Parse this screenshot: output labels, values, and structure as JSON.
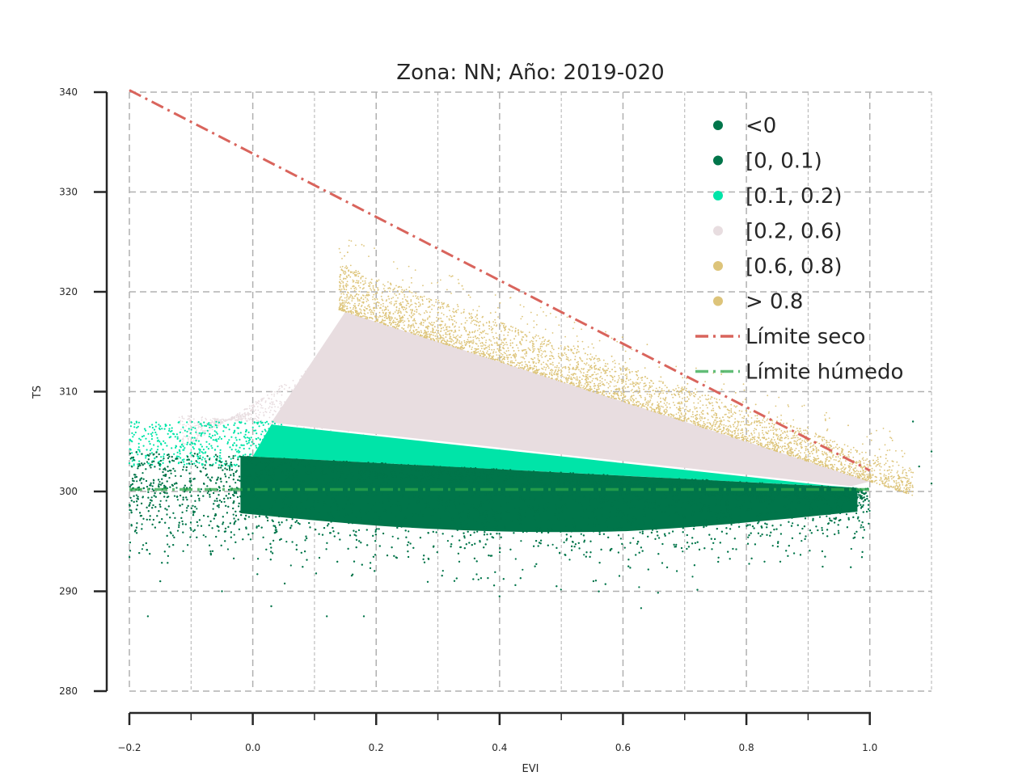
{
  "chart_data": {
    "type": "scatter",
    "title": "Zona: NN; Año: 2019-020",
    "xlabel": "EVI",
    "ylabel": "TS",
    "xlim": [
      -0.2,
      1.1
    ],
    "ylim": [
      280,
      340
    ],
    "x_ticks": [
      -0.2,
      0.0,
      0.2,
      0.4,
      0.6,
      0.8,
      1.0
    ],
    "x_tick_labels": [
      "−0.2",
      "0.0",
      "0.2",
      "0.4",
      "0.6",
      "0.8",
      "1.0"
    ],
    "y_ticks": [
      280,
      290,
      300,
      310,
      320,
      330,
      340
    ],
    "y_tick_labels": [
      "280",
      "290",
      "300",
      "310",
      "320",
      "330",
      "340"
    ],
    "grid": true,
    "legend_position": "top-right",
    "series": [
      {
        "name": "<0",
        "color": "#00754a",
        "marker": "dot"
      },
      {
        "name": "[0, 0.1)",
        "color": "#00754a",
        "marker": "dot",
        "region": {
          "x": [
            -0.2,
            1.0
          ],
          "ts_center_at_x": [
            [
              -0.2,
              300.2
            ],
            [
              0.2,
              299.8
            ],
            [
              0.6,
              299.7
            ],
            [
              1.0,
              300.2
            ]
          ],
          "ts_spread": 3.0,
          "upper_edge": [
            [
              0.0,
              303.5
            ],
            [
              1.0,
              300.3
            ]
          ]
        }
      },
      {
        "name": "[0.1, 0.2)",
        "color": "#00e4a8",
        "marker": "dot",
        "region": {
          "x": [
            -0.2,
            0.93
          ],
          "lower_edge": [
            [
              0.0,
              303.5
            ],
            [
              1.0,
              300.3
            ]
          ],
          "upper_edge": [
            [
              0.03,
              306.7
            ],
            [
              0.93,
              300.6
            ]
          ]
        }
      },
      {
        "name": "[0.2, 0.6)",
        "color": "#e8dde0",
        "marker": "dot",
        "region": {
          "x": [
            -0.1,
            1.0
          ],
          "lower_edge": [
            [
              0.03,
              306.7
            ],
            [
              0.93,
              300.6
            ]
          ],
          "upper_edge": [
            [
              0.15,
              318.0
            ],
            [
              1.0,
              301.0
            ]
          ]
        }
      },
      {
        "name": "[0.6, 0.8)",
        "color": "#ddc47a",
        "marker": "dot",
        "region": {
          "x": [
            0.14,
            1.07
          ],
          "lower_edge": [
            [
              0.15,
              318.0
            ],
            [
              1.0,
              301.0
            ]
          ],
          "upper_edge": [
            [
              0.15,
              322.5
            ],
            [
              0.95,
              305.0
            ]
          ]
        }
      },
      {
        "name": "> 0.8",
        "color": "#ddc47a",
        "marker": "dot"
      },
      {
        "name": "Límite seco",
        "type": "line",
        "style": "dash-dot",
        "color": "#d9645c",
        "x": [
          -0.2,
          1.0
        ],
        "y": [
          340.2,
          302.1
        ]
      },
      {
        "name": "Límite húmedo",
        "type": "line",
        "style": "dash-dot",
        "color": "#2ea84a",
        "x": [
          -0.2,
          1.0
        ],
        "y": [
          300.2,
          300.2
        ]
      }
    ]
  }
}
